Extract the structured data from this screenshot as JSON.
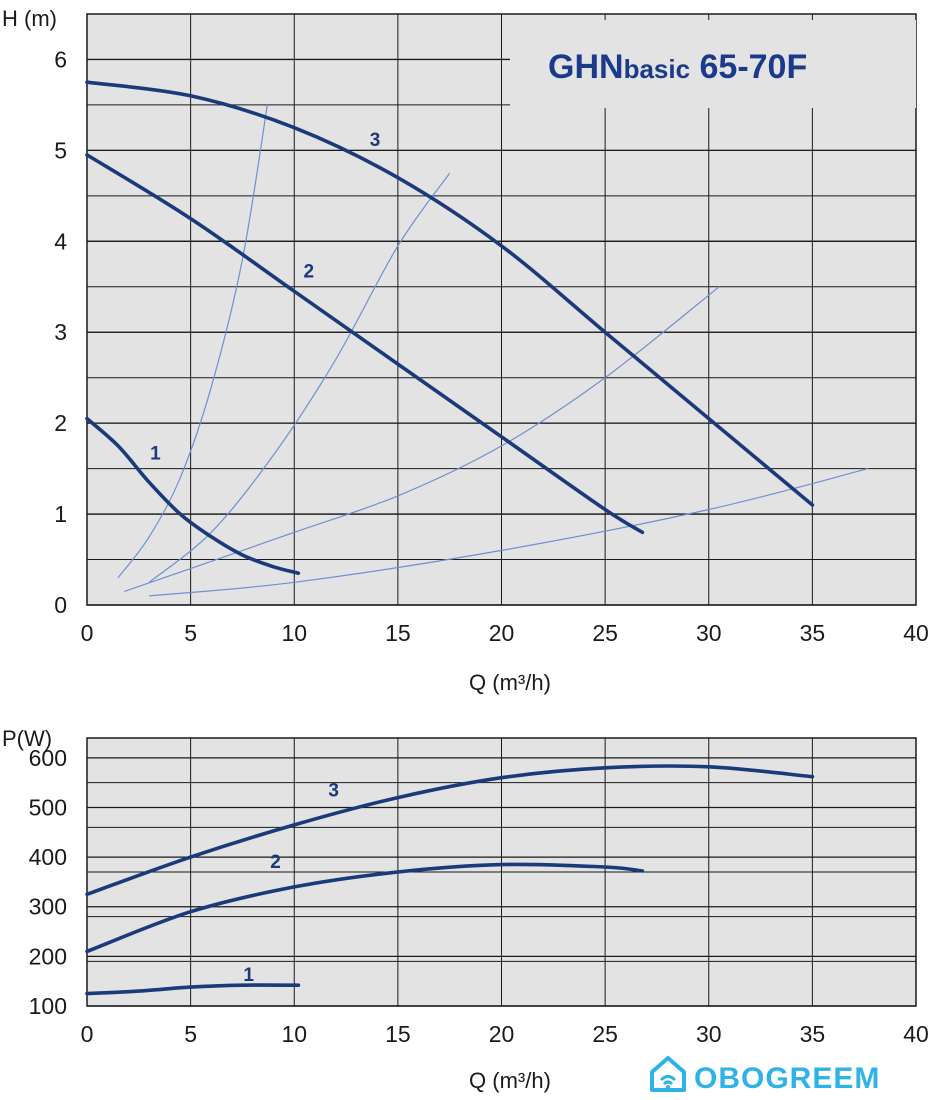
{
  "chart_data": [
    {
      "type": "line",
      "title": "GHNbasic 65-70F",
      "title_parts": [
        "GHN",
        "basic",
        " 65-70F"
      ],
      "xlabel": "Q (m³/h)",
      "ylabel": "H (m)",
      "xlim": [
        0,
        40
      ],
      "ylim": [
        0,
        6.5
      ],
      "x_ticks": [
        0,
        5,
        10,
        15,
        20,
        25,
        30,
        35,
        40
      ],
      "y_ticks": [
        0,
        1,
        2,
        3,
        4,
        5,
        6
      ],
      "grid": true,
      "series": [
        {
          "name": "1",
          "x": [
            0,
            1.5,
            3,
            4.5,
            6,
            7.5,
            9,
            10.2
          ],
          "y": [
            2.05,
            1.75,
            1.35,
            1.0,
            0.75,
            0.55,
            0.42,
            0.35
          ]
        },
        {
          "name": "2",
          "x": [
            0,
            5,
            10,
            15,
            20,
            25,
            26.8
          ],
          "y": [
            4.95,
            4.25,
            3.45,
            2.65,
            1.85,
            1.05,
            0.8
          ]
        },
        {
          "name": "3",
          "x": [
            0,
            5,
            10,
            15,
            20,
            25,
            30,
            35
          ],
          "y": [
            5.75,
            5.6,
            5.25,
            4.7,
            3.95,
            3.0,
            2.05,
            1.1
          ]
        }
      ],
      "system_curves": [
        {
          "x": [
            1.5,
            3,
            4.5,
            6,
            7.5,
            8.7
          ],
          "y": [
            0.3,
            0.75,
            1.4,
            2.4,
            3.8,
            5.5
          ]
        },
        {
          "x": [
            3,
            6,
            9,
            12,
            15,
            17.5
          ],
          "y": [
            0.25,
            0.8,
            1.65,
            2.7,
            3.95,
            4.75
          ]
        },
        {
          "x": [
            1.8,
            5,
            10,
            15,
            20,
            25,
            30.5
          ],
          "y": [
            0.15,
            0.4,
            0.8,
            1.2,
            1.75,
            2.5,
            3.5
          ]
        },
        {
          "x": [
            3,
            10,
            20,
            30,
            37.7
          ],
          "y": [
            0.1,
            0.25,
            0.6,
            1.05,
            1.5
          ]
        }
      ],
      "curve_labels": [
        {
          "text": "1",
          "x": 3.3,
          "y": 1.6
        },
        {
          "text": "2",
          "x": 10.7,
          "y": 3.6
        },
        {
          "text": "3",
          "x": 13.9,
          "y": 5.05
        }
      ]
    },
    {
      "type": "line",
      "xlabel": "Q (m³/h)",
      "ylabel": "P(W)",
      "xlim": [
        0,
        40
      ],
      "ylim": [
        100,
        640
      ],
      "x_ticks": [
        0,
        5,
        10,
        15,
        20,
        25,
        30,
        35,
        40
      ],
      "y_ticks": [
        100,
        200,
        300,
        400,
        500,
        600
      ],
      "grid": true,
      "series": [
        {
          "name": "1",
          "x": [
            0,
            2.5,
            5,
            7.5,
            10.2
          ],
          "y": [
            125,
            130,
            138,
            142,
            142
          ]
        },
        {
          "name": "2",
          "x": [
            0,
            5,
            10,
            15,
            20,
            25,
            26.8
          ],
          "y": [
            210,
            290,
            340,
            370,
            385,
            380,
            372
          ]
        },
        {
          "name": "3",
          "x": [
            0,
            5,
            10,
            15,
            20,
            25,
            30,
            35
          ],
          "y": [
            325,
            400,
            465,
            520,
            560,
            580,
            582,
            562
          ]
        }
      ],
      "curve_labels": [
        {
          "text": "1",
          "x": 7.8,
          "y": 150
        },
        {
          "text": "2",
          "x": 9.1,
          "y": 378
        },
        {
          "text": "3",
          "x": 11.9,
          "y": 522
        }
      ]
    }
  ],
  "colors": {
    "curve": "#1b3a7a",
    "system_curve": "#6f8fd0",
    "plot_bg": "#e3e3e3",
    "grid": "#1a1a1a",
    "title": "#1b3a8c",
    "logo": "#2fb3e6"
  },
  "logo": {
    "text": "OBOGREEM",
    "icon": "house-wifi-icon"
  }
}
